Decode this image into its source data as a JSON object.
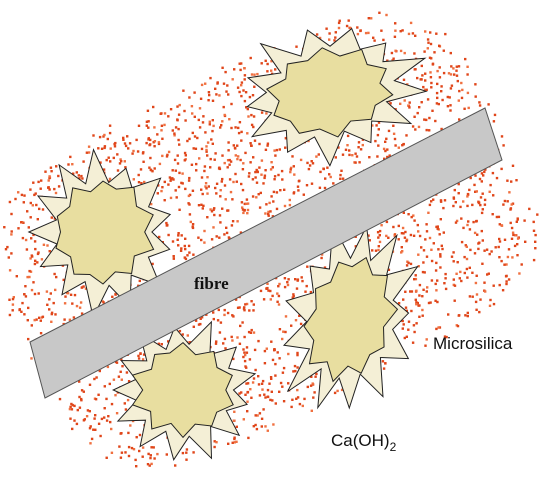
{
  "labels": {
    "fibre": "fibre",
    "microsilica": "Microsilica",
    "calcium_hydroxide": {
      "base": "Ca(OH)",
      "subscript": "2"
    }
  }
}
